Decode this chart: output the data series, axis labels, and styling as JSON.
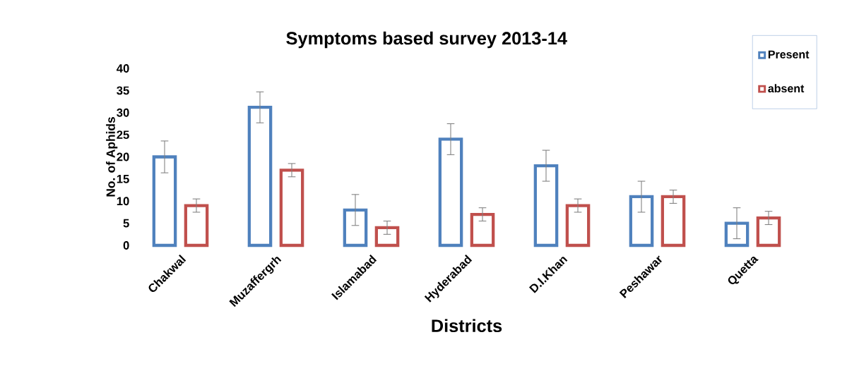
{
  "chart_data": {
    "type": "bar",
    "title": "Symptoms based survey 2013-14",
    "xlabel": "Districts",
    "ylabel": "No. of Aphids",
    "categories": [
      "Chakwal",
      "Muzaffergrh",
      "Islamabad",
      "Hyderabad",
      "D.I.Khan",
      "Peshawar",
      "Quetta"
    ],
    "series": [
      {
        "name": "Present",
        "color": "#4f81bd",
        "values": [
          20,
          31.2,
          8,
          24,
          18,
          11,
          5
        ],
        "errors": [
          3.6,
          3.5,
          3.5,
          3.5,
          3.5,
          3.5,
          3.5
        ]
      },
      {
        "name": "absent",
        "color": "#c0504d",
        "values": [
          9,
          17,
          4,
          7,
          9,
          11,
          6.2
        ],
        "errors": [
          1.5,
          1.5,
          1.5,
          1.5,
          1.5,
          1.5,
          1.5
        ]
      }
    ],
    "ylim": [
      0,
      40
    ],
    "yticks": [
      0,
      5,
      10,
      15,
      20,
      25,
      30,
      35,
      40
    ],
    "legend": "top right"
  }
}
